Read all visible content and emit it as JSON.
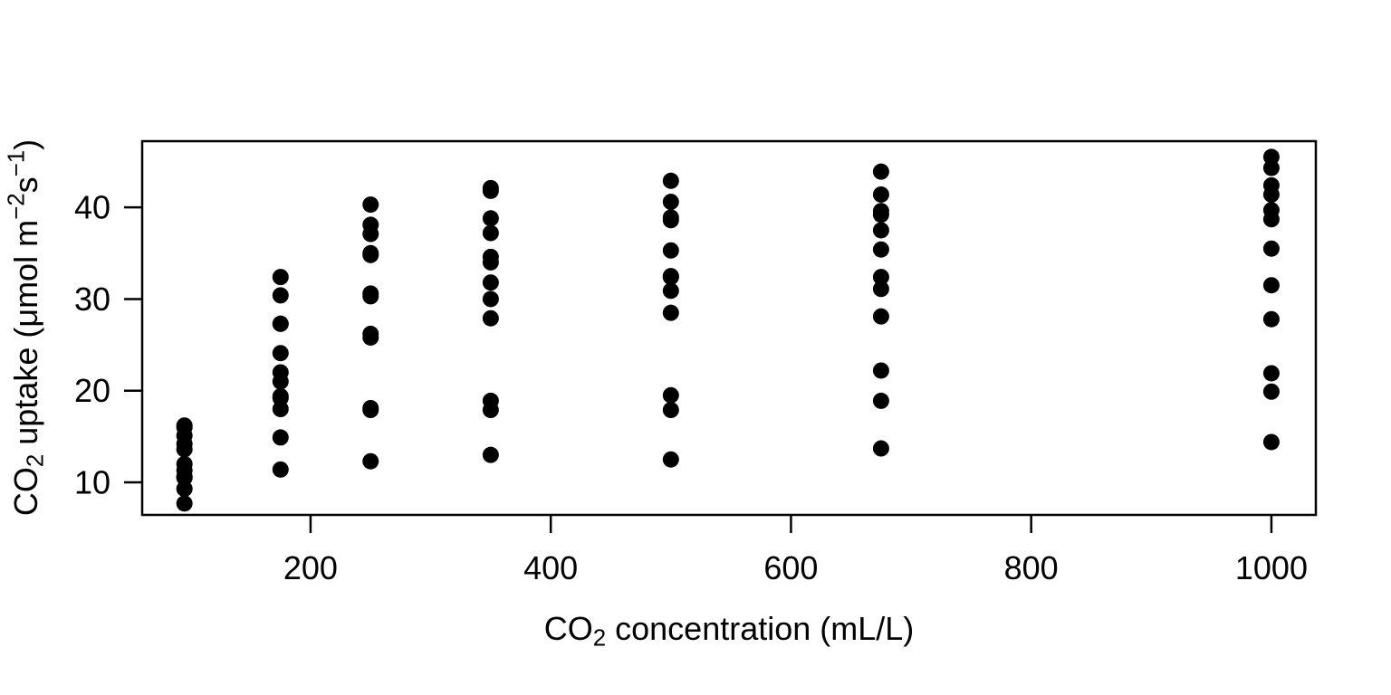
{
  "figure": {
    "background_color": "#FFFFFF",
    "foreground_color": "#000000"
  },
  "chart_data": {
    "type": "scatter",
    "title": "",
    "xlabel": "CO2 concentration (mL/L)",
    "ylabel": "CO2 uptake (umol m^-2 s^-1)",
    "xlabel_parts": [
      {
        "text": "CO",
        "style": "normal"
      },
      {
        "text": "2",
        "style": "sub"
      },
      {
        "text": " concentration (mL/L)",
        "style": "normal"
      }
    ],
    "ylabel_parts": [
      {
        "text": "CO",
        "style": "normal"
      },
      {
        "text": "2",
        "style": "sub"
      },
      {
        "text": " uptake (μmol m",
        "style": "normal"
      },
      {
        "text": "−2",
        "style": "sup"
      },
      {
        "text": "s",
        "style": "normal"
      },
      {
        "text": "−1",
        "style": "sup"
      },
      {
        "text": ")",
        "style": "normal"
      }
    ],
    "x_ticks": [
      200,
      400,
      600,
      800,
      1000
    ],
    "y_ticks": [
      10,
      20,
      30,
      40
    ],
    "xlim": [
      59.8,
      1037.0
    ],
    "ylim": [
      6.45,
      47.22
    ],
    "grid": false,
    "legend": "none",
    "marker": {
      "shape": "filled-circle",
      "color": "#000000",
      "radius_px": 9
    },
    "groups": [
      {
        "concentration": 95,
        "uptake": [
          16.0,
          13.6,
          16.2,
          14.2,
          9.3,
          15.1,
          10.6,
          12.0,
          11.3,
          10.5,
          7.7,
          10.6
        ]
      },
      {
        "concentration": 175,
        "uptake": [
          30.4,
          27.3,
          32.4,
          24.1,
          27.3,
          21.0,
          19.2,
          22.0,
          19.4,
          14.9,
          11.4,
          18.0
        ]
      },
      {
        "concentration": 250,
        "uptake": [
          34.8,
          37.1,
          40.3,
          30.3,
          35.0,
          38.1,
          26.2,
          30.6,
          25.8,
          18.1,
          12.3,
          17.9
        ]
      },
      {
        "concentration": 350,
        "uptake": [
          37.2,
          41.8,
          42.1,
          34.6,
          38.8,
          34.0,
          30.0,
          31.8,
          27.9,
          18.9,
          13.0,
          17.9
        ]
      },
      {
        "concentration": 500,
        "uptake": [
          35.3,
          40.6,
          42.9,
          32.5,
          38.6,
          38.9,
          30.9,
          32.4,
          28.5,
          19.5,
          12.5,
          17.9
        ]
      },
      {
        "concentration": 675,
        "uptake": [
          39.2,
          41.4,
          43.9,
          35.4,
          37.5,
          39.6,
          32.4,
          31.1,
          28.1,
          22.2,
          13.7,
          18.9
        ]
      },
      {
        "concentration": 1000,
        "uptake": [
          39.7,
          44.3,
          45.5,
          38.7,
          42.4,
          41.4,
          35.5,
          31.5,
          27.8,
          21.9,
          14.4,
          19.9
        ]
      }
    ]
  }
}
